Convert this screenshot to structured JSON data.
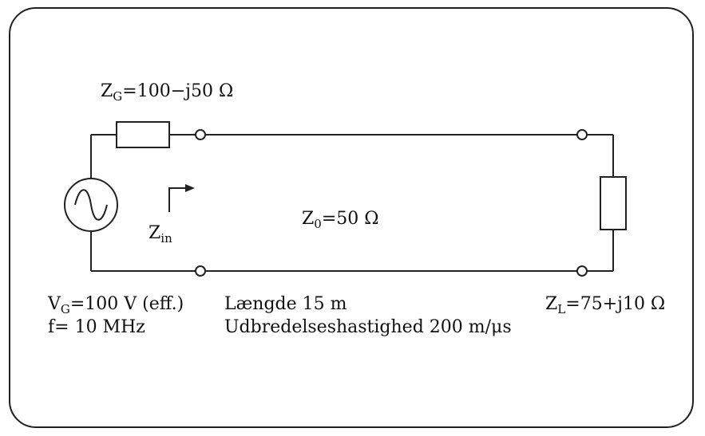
{
  "labels": {
    "zg": {
      "sym": "Z",
      "sub": "G",
      "val": "=100−j50 Ω"
    },
    "zin": {
      "sym": "Z",
      "sub": "in"
    },
    "z0": {
      "sym": "Z",
      "sub": "0",
      "val": "=50 Ω"
    },
    "vg": {
      "sym": "V",
      "sub": "G",
      "val": "=100 V (eff.)"
    },
    "freq": "f= 10 MHz",
    "length": "Længde 15 m",
    "velocity": "Udbredelseshastighed 200 m/μs",
    "zl": {
      "sym": "Z",
      "sub": "L",
      "val": "=75+j10 Ω"
    }
  }
}
